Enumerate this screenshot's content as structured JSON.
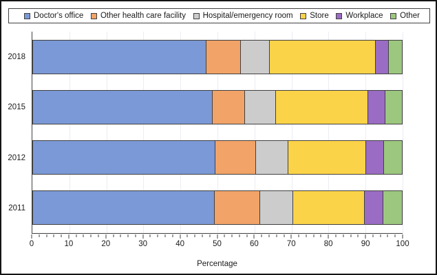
{
  "figure": {
    "background": "#FFFFFF",
    "outer_border_color": "#141414",
    "axis_color": "#404040",
    "gridline_color": "#ECECF4",
    "segment_border_color": "#404040",
    "legend_border_color": "#404040"
  },
  "chart_data": {
    "type": "bar",
    "orientation": "horizontal",
    "stacked": true,
    "title": "",
    "xlabel": "Percentage",
    "xlim": [
      0,
      100
    ],
    "x_major_tick": 10,
    "x_minor_tick": 2,
    "x_tick_labels": [
      "0",
      "10",
      "20",
      "30",
      "40",
      "50",
      "60",
      "70",
      "80",
      "90",
      "100"
    ],
    "grid": "faint vertical gridlines at every 10 percent",
    "legend_position": "top, boxed, horizontal",
    "categories": [
      "2018",
      "2015",
      "2012",
      "2011"
    ],
    "series": [
      {
        "name": "Doctor's office",
        "color": "#7B99D6",
        "values": [
          47.1,
          48.7,
          49.5,
          49.2
        ]
      },
      {
        "name": "Other health care facility",
        "color": "#F1A368",
        "values": [
          9.3,
          8.8,
          11.0,
          12.3
        ]
      },
      {
        "name": "Hospital/emergency room",
        "color": "#CCCCCC",
        "values": [
          7.7,
          8.3,
          8.7,
          9.0
        ]
      },
      {
        "name": "Store",
        "color": "#FBD348",
        "values": [
          28.6,
          25.0,
          21.0,
          19.3
        ]
      },
      {
        "name": "Workplace",
        "color": "#9A6CC3",
        "values": [
          3.5,
          4.5,
          4.7,
          5.0
        ]
      },
      {
        "name": "Other",
        "color": "#9CC77E",
        "values": [
          3.8,
          4.7,
          5.1,
          5.2
        ]
      }
    ]
  }
}
